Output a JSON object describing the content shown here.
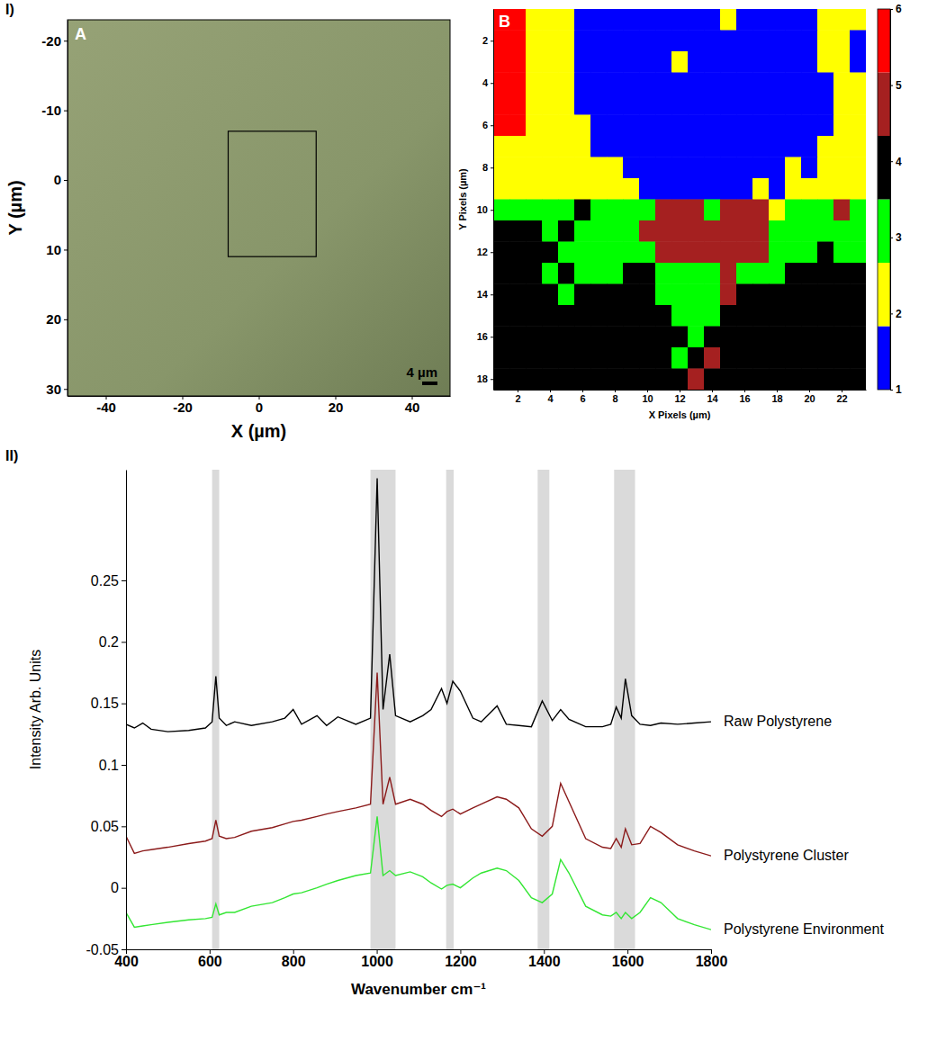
{
  "section_labels": [
    "I)",
    "II)"
  ],
  "chart_data": [
    {
      "type": "image",
      "panel_label": "A",
      "xlabel": "X (µm)",
      "ylabel": "Y (µm)",
      "xlim": [
        -50,
        50
      ],
      "ylim": [
        -23,
        31
      ],
      "xticks": [
        -40,
        -20,
        0,
        20,
        40
      ],
      "yticks": [
        -20,
        -10,
        0,
        10,
        20,
        30
      ],
      "roi": {
        "x": [
          -8,
          15
        ],
        "y": [
          -7,
          11
        ]
      },
      "scale_bar": {
        "length": 4,
        "label": "4 µm"
      }
    },
    {
      "type": "heatmap",
      "panel_label": "B",
      "xlabel": "X Pixels (µm)",
      "ylabel": "Y Pixels (µm)",
      "xlim": [
        0.5,
        23.5
      ],
      "ylim": [
        0.5,
        18.5
      ],
      "xticks": [
        2,
        4,
        6,
        8,
        10,
        12,
        14,
        16,
        18,
        20,
        22
      ],
      "yticks": [
        2,
        4,
        6,
        8,
        10,
        12,
        14,
        16,
        18
      ],
      "cells": [
        [
          6,
          6,
          2,
          2,
          2,
          1,
          1,
          1,
          1,
          1,
          1,
          1,
          1,
          1,
          2,
          1,
          1,
          1,
          1,
          1,
          2,
          2,
          2
        ],
        [
          6,
          6,
          2,
          2,
          2,
          1,
          1,
          1,
          1,
          1,
          1,
          1,
          1,
          1,
          1,
          1,
          1,
          1,
          1,
          1,
          2,
          2,
          1
        ],
        [
          6,
          6,
          2,
          2,
          2,
          1,
          1,
          1,
          1,
          1,
          1,
          2,
          1,
          1,
          1,
          1,
          1,
          1,
          1,
          1,
          2,
          2,
          1
        ],
        [
          6,
          6,
          2,
          2,
          2,
          1,
          1,
          1,
          1,
          1,
          1,
          1,
          1,
          1,
          1,
          1,
          1,
          1,
          1,
          1,
          1,
          2,
          2
        ],
        [
          6,
          6,
          2,
          2,
          2,
          1,
          1,
          1,
          1,
          1,
          1,
          1,
          1,
          1,
          1,
          1,
          1,
          1,
          1,
          1,
          1,
          2,
          2
        ],
        [
          6,
          6,
          2,
          2,
          2,
          2,
          1,
          1,
          1,
          1,
          1,
          1,
          1,
          1,
          1,
          1,
          1,
          1,
          1,
          1,
          1,
          2,
          2
        ],
        [
          2,
          2,
          2,
          2,
          2,
          2,
          1,
          1,
          1,
          1,
          1,
          1,
          1,
          1,
          1,
          1,
          1,
          1,
          1,
          1,
          2,
          2,
          2
        ],
        [
          2,
          2,
          2,
          2,
          2,
          2,
          2,
          2,
          1,
          1,
          1,
          1,
          1,
          1,
          1,
          1,
          1,
          1,
          2,
          1,
          2,
          2,
          2
        ],
        [
          2,
          2,
          2,
          2,
          2,
          2,
          2,
          2,
          2,
          1,
          1,
          1,
          1,
          1,
          1,
          1,
          2,
          1,
          2,
          2,
          2,
          2,
          2
        ],
        [
          3,
          3,
          3,
          3,
          3,
          4,
          3,
          3,
          3,
          3,
          5,
          5,
          5,
          3,
          5,
          5,
          5,
          2,
          3,
          3,
          3,
          5,
          3
        ],
        [
          4,
          4,
          4,
          3,
          4,
          3,
          3,
          3,
          3,
          5,
          5,
          5,
          5,
          5,
          5,
          5,
          5,
          3,
          3,
          3,
          3,
          3,
          3
        ],
        [
          4,
          4,
          4,
          4,
          3,
          3,
          3,
          3,
          3,
          3,
          5,
          5,
          5,
          5,
          5,
          5,
          5,
          3,
          3,
          3,
          4,
          3,
          3
        ],
        [
          4,
          4,
          4,
          3,
          4,
          3,
          3,
          3,
          4,
          4,
          3,
          3,
          3,
          3,
          5,
          3,
          3,
          3,
          4,
          4,
          4,
          4,
          4
        ],
        [
          4,
          4,
          4,
          4,
          3,
          4,
          4,
          4,
          4,
          4,
          3,
          3,
          3,
          3,
          5,
          4,
          4,
          4,
          4,
          4,
          4,
          4,
          4
        ],
        [
          4,
          4,
          4,
          4,
          4,
          4,
          4,
          4,
          4,
          4,
          4,
          3,
          3,
          3,
          4,
          4,
          4,
          4,
          4,
          4,
          4,
          4,
          4
        ],
        [
          4,
          4,
          4,
          4,
          4,
          4,
          4,
          4,
          4,
          4,
          4,
          4,
          3,
          4,
          4,
          4,
          4,
          4,
          4,
          4,
          4,
          4,
          4
        ],
        [
          4,
          4,
          4,
          4,
          4,
          4,
          4,
          4,
          4,
          4,
          4,
          3,
          4,
          5,
          4,
          4,
          4,
          4,
          4,
          4,
          4,
          4,
          4
        ],
        [
          4,
          4,
          4,
          4,
          4,
          4,
          4,
          4,
          4,
          4,
          4,
          4,
          5,
          4,
          4,
          4,
          4,
          4,
          4,
          4,
          4,
          4,
          4
        ]
      ],
      "colorbar": {
        "range": [
          1,
          6
        ],
        "ticks": [
          1,
          2,
          3,
          4,
          5,
          6
        ],
        "colors": [
          "#0000ff",
          "#ffff00",
          "#00ff00",
          "#000000",
          "#a52020",
          "#ff0000"
        ]
      }
    },
    {
      "type": "line",
      "xlabel": "Wavenumber cm⁻¹",
      "ylabel": "Intensity Arb. Units",
      "xlim": [
        400,
        1800
      ],
      "ylim": [
        -0.05,
        0.34
      ],
      "xticks": [
        400,
        600,
        800,
        1000,
        1200,
        1400,
        1600,
        1800
      ],
      "yticks": [
        -0.05,
        0,
        0.05,
        0.1,
        0.15,
        0.2,
        0.25
      ],
      "bands": [
        [
          606,
          623
        ],
        [
          985,
          1045
        ],
        [
          1166,
          1184
        ],
        [
          1385,
          1413
        ],
        [
          1568,
          1618
        ]
      ],
      "x": [
        400,
        420,
        440,
        460,
        500,
        550,
        590,
        606,
        615,
        623,
        640,
        660,
        700,
        750,
        780,
        800,
        820,
        857,
        880,
        907,
        950,
        985,
        1001,
        1015,
        1031,
        1045,
        1080,
        1110,
        1130,
        1155,
        1168,
        1182,
        1200,
        1230,
        1250,
        1288,
        1310,
        1340,
        1370,
        1396,
        1420,
        1440,
        1460,
        1500,
        1540,
        1560,
        1573,
        1585,
        1595,
        1610,
        1630,
        1655,
        1680,
        1720,
        1760,
        1800
      ],
      "series": [
        {
          "name": "Raw Polystyrene",
          "color": "#000000",
          "values": [
            0.133,
            0.13,
            0.134,
            0.129,
            0.127,
            0.128,
            0.13,
            0.135,
            0.172,
            0.138,
            0.132,
            0.135,
            0.132,
            0.135,
            0.138,
            0.145,
            0.133,
            0.14,
            0.132,
            0.139,
            0.133,
            0.138,
            0.333,
            0.145,
            0.19,
            0.14,
            0.135,
            0.14,
            0.145,
            0.162,
            0.15,
            0.168,
            0.16,
            0.138,
            0.135,
            0.148,
            0.133,
            0.132,
            0.131,
            0.152,
            0.136,
            0.145,
            0.137,
            0.131,
            0.131,
            0.133,
            0.147,
            0.138,
            0.17,
            0.14,
            0.133,
            0.132,
            0.134,
            0.133,
            0.134,
            0.135
          ]
        },
        {
          "name": "Polystyrene Cluster",
          "color": "#8b1a1a",
          "values": [
            0.042,
            0.028,
            0.03,
            0.031,
            0.033,
            0.036,
            0.038,
            0.04,
            0.055,
            0.042,
            0.04,
            0.041,
            0.046,
            0.049,
            0.052,
            0.054,
            0.055,
            0.058,
            0.06,
            0.062,
            0.065,
            0.068,
            0.175,
            0.068,
            0.09,
            0.068,
            0.072,
            0.068,
            0.063,
            0.058,
            0.062,
            0.064,
            0.06,
            0.065,
            0.068,
            0.074,
            0.072,
            0.065,
            0.048,
            0.042,
            0.05,
            0.085,
            0.07,
            0.04,
            0.033,
            0.032,
            0.04,
            0.033,
            0.048,
            0.035,
            0.036,
            0.05,
            0.045,
            0.035,
            0.03,
            0.026
          ]
        },
        {
          "name": "Polystyrene Environment",
          "color": "#33e633",
          "values": [
            -0.02,
            -0.032,
            -0.031,
            -0.03,
            -0.028,
            -0.026,
            -0.025,
            -0.024,
            -0.013,
            -0.022,
            -0.02,
            -0.02,
            -0.015,
            -0.012,
            -0.008,
            -0.005,
            -0.004,
            0,
            0.003,
            0.006,
            0.01,
            0.012,
            0.058,
            0.01,
            0.014,
            0.01,
            0.013,
            0.009,
            0.004,
            -0.001,
            0.002,
            0.003,
            0,
            0.008,
            0.012,
            0.016,
            0.014,
            0.006,
            -0.008,
            -0.012,
            -0.005,
            0.023,
            0.012,
            -0.015,
            -0.022,
            -0.023,
            -0.02,
            -0.025,
            -0.02,
            -0.025,
            -0.02,
            -0.008,
            -0.012,
            -0.025,
            -0.03,
            -0.034
          ]
        }
      ]
    }
  ]
}
